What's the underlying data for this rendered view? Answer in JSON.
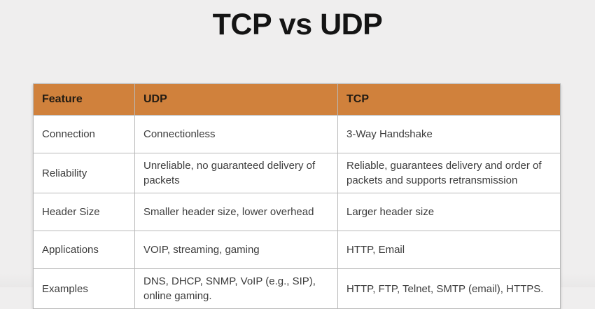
{
  "page": {
    "title": "TCP vs UDP"
  },
  "colors": {
    "accent": "#d0813c",
    "header_text": "#221b13",
    "body_text": "#3c3c3c",
    "border": "#b9b9b9",
    "background": "#efeeee",
    "cell_bg": "#ffffff",
    "title_text": "#141414"
  },
  "table": {
    "columns": [
      "Feature",
      "UDP",
      "TCP"
    ],
    "rows": [
      [
        "Connection",
        "Connectionless",
        "3-Way Handshake"
      ],
      [
        "Reliability",
        "Unreliable, no guaranteed delivery of packets",
        "Reliable, guarantees delivery and order of packets and supports retransmission"
      ],
      [
        "Header Size",
        "Smaller header size, lower overhead",
        "Larger header size"
      ],
      [
        "Applications",
        "VOIP, streaming, gaming",
        "HTTP, Email"
      ],
      [
        "Examples",
        "DNS, DHCP, SNMP, VoIP (e.g., SIP), online gaming.",
        "HTTP, FTP, Telnet, SMTP (email), HTTPS."
      ]
    ]
  }
}
